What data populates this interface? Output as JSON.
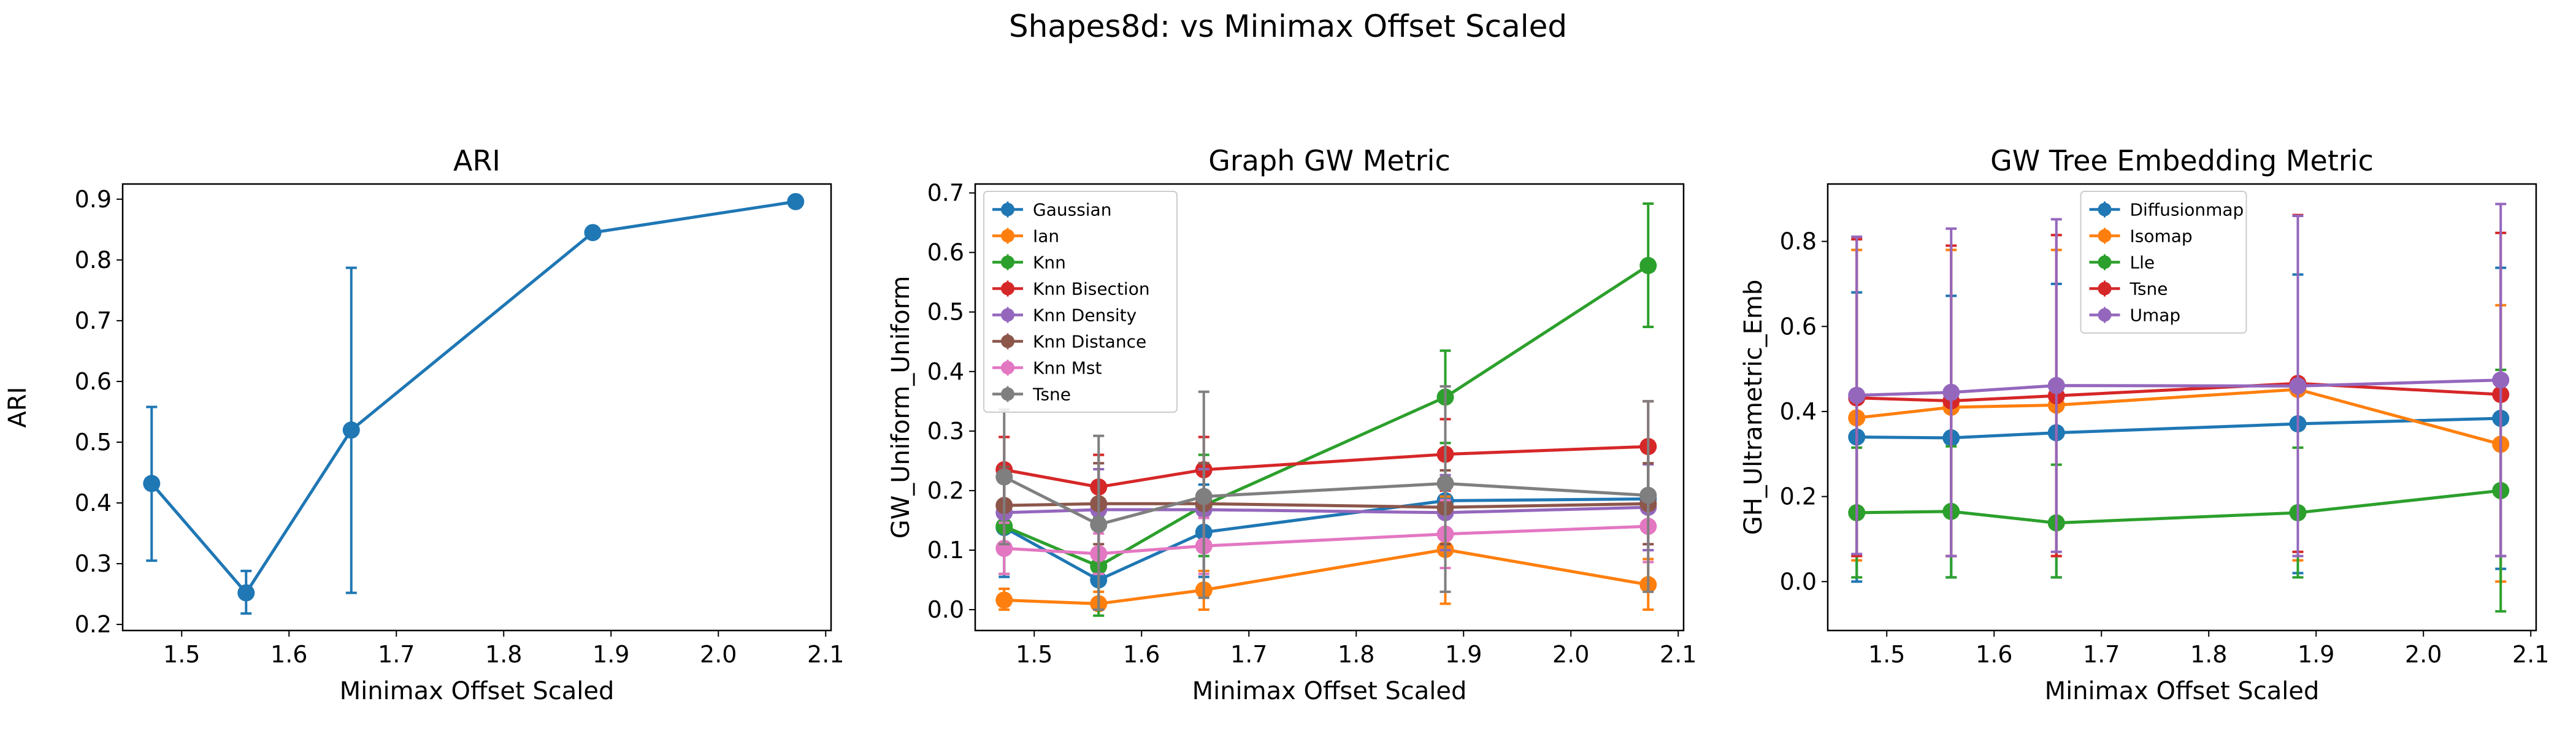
{
  "figure": {
    "suptitle": "Shapes8d: vs Minimax Offset Scaled"
  },
  "colors": {
    "tab_blue": "#1f77b4",
    "tab_orange": "#ff7f0e",
    "tab_green": "#2ca02c",
    "tab_red": "#d62728",
    "tab_purple": "#9467bd",
    "tab_brown": "#8c564b",
    "tab_pink": "#e377c2",
    "tab_gray": "#7f7f7f"
  },
  "chart_data": [
    {
      "type": "line",
      "title": "ARI",
      "xlabel": "Minimax Offset Scaled",
      "ylabel": "ARI",
      "xlim": [
        1.445,
        2.105
      ],
      "ylim": [
        0.19,
        0.925
      ],
      "xticks": [
        "1.5",
        "1.6",
        "1.7",
        "1.8",
        "1.9",
        "2.0",
        "2.1"
      ],
      "yticks": [
        "0.2",
        "0.3",
        "0.4",
        "0.5",
        "0.6",
        "0.7",
        "0.8",
        "0.9"
      ],
      "x": [
        1.472,
        1.56,
        1.658,
        1.883,
        2.072
      ],
      "legend": null,
      "series": [
        {
          "color": "#1f77b4",
          "values": [
            0.432,
            0.252,
            0.52,
            0.845,
            0.896
          ],
          "err_low": [
            0.305,
            0.218,
            0.252,
            null,
            null
          ],
          "err_high": [
            0.558,
            0.288,
            0.787,
            null,
            null
          ]
        }
      ]
    },
    {
      "type": "line",
      "title": "Graph GW Metric",
      "xlabel": "Minimax Offset Scaled",
      "ylabel": "GW_Uniform_Uniform",
      "xlim": [
        1.445,
        2.105
      ],
      "ylim": [
        -0.035,
        0.715
      ],
      "xticks": [
        "1.5",
        "1.6",
        "1.7",
        "1.8",
        "1.9",
        "2.0",
        "2.1"
      ],
      "yticks": [
        "0.0",
        "0.1",
        "0.2",
        "0.3",
        "0.4",
        "0.5",
        "0.6",
        "0.7"
      ],
      "x": [
        1.472,
        1.56,
        1.658,
        1.883,
        2.072
      ],
      "legend": "upper-left",
      "series": [
        {
          "name": "Gaussian",
          "color": "#1f77b4",
          "values": [
            0.138,
            0.05,
            0.13,
            0.183,
            0.186
          ],
          "err_low": [
            0.055,
            0.01,
            0.055,
            0.095,
            0.1
          ],
          "err_high": [
            0.22,
            0.09,
            0.21,
            0.27,
            0.28
          ]
        },
        {
          "name": "Ian",
          "color": "#ff7f0e",
          "values": [
            0.016,
            0.01,
            0.033,
            0.101,
            0.042
          ],
          "err_low": [
            0.0,
            0.0,
            0.0,
            0.01,
            0.0
          ],
          "err_high": [
            0.035,
            0.03,
            0.065,
            0.19,
            0.085
          ]
        },
        {
          "name": "Knn",
          "color": "#2ca02c",
          "values": [
            0.14,
            0.073,
            0.175,
            0.357,
            0.578
          ],
          "err_low": [
            0.06,
            -0.01,
            0.09,
            0.28,
            0.475
          ],
          "err_high": [
            0.215,
            0.155,
            0.26,
            0.435,
            0.682
          ]
        },
        {
          "name": "Knn Bisection",
          "color": "#d62728",
          "values": [
            0.235,
            0.206,
            0.235,
            0.261,
            0.274
          ],
          "err_low": [
            0.18,
            0.15,
            0.18,
            0.2,
            0.2
          ],
          "err_high": [
            0.29,
            0.26,
            0.29,
            0.32,
            0.35
          ]
        },
        {
          "name": "Knn Density",
          "color": "#9467bd",
          "values": [
            0.163,
            0.168,
            0.168,
            0.163,
            0.172
          ],
          "err_low": [
            0.1,
            0.1,
            0.1,
            0.1,
            0.1
          ],
          "err_high": [
            0.226,
            0.236,
            0.236,
            0.226,
            0.244
          ]
        },
        {
          "name": "Knn Distance",
          "color": "#8c564b",
          "values": [
            0.175,
            0.178,
            0.178,
            0.172,
            0.178
          ],
          "err_low": [
            0.11,
            0.11,
            0.11,
            0.11,
            0.11
          ],
          "err_high": [
            0.24,
            0.246,
            0.246,
            0.234,
            0.246
          ]
        },
        {
          "name": "Knn Mst",
          "color": "#e377c2",
          "values": [
            0.103,
            0.094,
            0.107,
            0.127,
            0.14
          ],
          "err_low": [
            0.06,
            0.06,
            0.06,
            0.07,
            0.08
          ],
          "err_high": [
            0.146,
            0.128,
            0.154,
            0.184,
            0.2
          ]
        },
        {
          "name": "Tsne",
          "color": "#7f7f7f",
          "values": [
            0.223,
            0.143,
            0.19,
            0.212,
            0.192
          ],
          "err_low": [
            0.11,
            0.0,
            0.02,
            0.03,
            0.03
          ],
          "err_high": [
            0.336,
            0.292,
            0.366,
            0.375,
            0.35
          ]
        }
      ]
    },
    {
      "type": "line",
      "title": "GW Tree Embedding Metric",
      "xlabel": "Minimax Offset Scaled",
      "ylabel": "GH_Ultrametric_Emb",
      "xlim": [
        1.445,
        2.105
      ],
      "ylim": [
        -0.115,
        0.935
      ],
      "xticks": [
        "1.5",
        "1.6",
        "1.7",
        "1.8",
        "1.9",
        "2.0",
        "2.1"
      ],
      "yticks": [
        "0.0",
        "0.2",
        "0.4",
        "0.6",
        "0.8"
      ],
      "x": [
        1.472,
        1.56,
        1.658,
        1.883,
        2.072
      ],
      "legend": "upper-center",
      "series": [
        {
          "name": "Diffusionmap",
          "color": "#1f77b4",
          "values": [
            0.34,
            0.338,
            0.35,
            0.371,
            0.384
          ],
          "err_low": [
            0.0,
            0.01,
            0.01,
            0.02,
            0.03
          ],
          "err_high": [
            0.68,
            0.672,
            0.7,
            0.722,
            0.738
          ]
        },
        {
          "name": "Isomap",
          "color": "#ff7f0e",
          "values": [
            0.385,
            0.41,
            0.415,
            0.452,
            0.323
          ],
          "err_low": [
            0.05,
            0.06,
            0.06,
            0.05,
            0.0
          ],
          "err_high": [
            0.78,
            0.78,
            0.78,
            0.86,
            0.65
          ]
        },
        {
          "name": "Lle",
          "color": "#2ca02c",
          "values": [
            0.162,
            0.165,
            0.138,
            0.162,
            0.214
          ],
          "err_low": [
            0.01,
            0.01,
            0.01,
            0.01,
            -0.07
          ],
          "err_high": [
            0.315,
            0.318,
            0.275,
            0.315,
            0.498
          ]
        },
        {
          "name": "Tsne",
          "color": "#d62728",
          "values": [
            0.432,
            0.425,
            0.437,
            0.466,
            0.44
          ],
          "err_low": [
            0.06,
            0.06,
            0.06,
            0.07,
            0.06
          ],
          "err_high": [
            0.805,
            0.79,
            0.815,
            0.862,
            0.82
          ]
        },
        {
          "name": "Umap",
          "color": "#9467bd",
          "values": [
            0.438,
            0.445,
            0.461,
            0.46,
            0.474
          ],
          "err_low": [
            0.065,
            0.06,
            0.07,
            0.06,
            0.06
          ],
          "err_high": [
            0.811,
            0.83,
            0.852,
            0.86,
            0.888
          ]
        }
      ]
    }
  ]
}
